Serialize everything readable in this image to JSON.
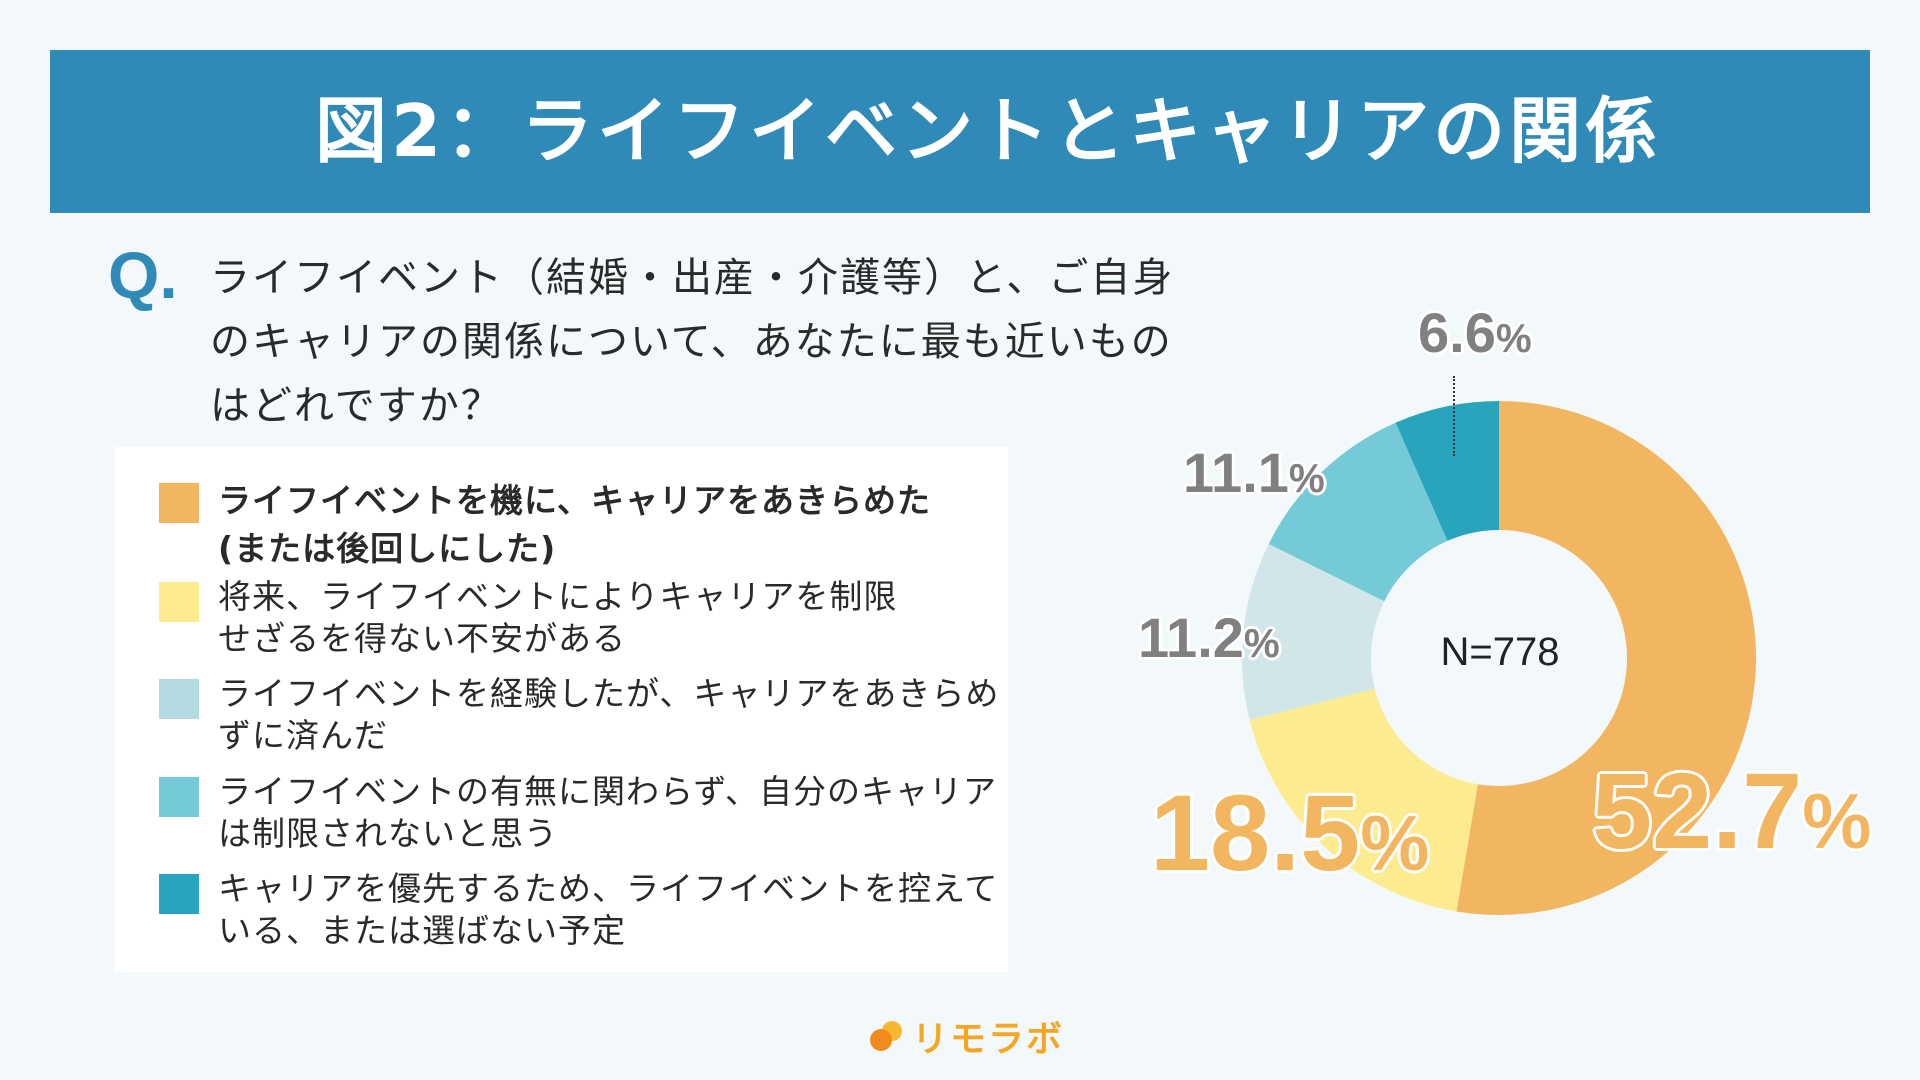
{
  "header": {
    "title": "図2：ライフイベントとキャリアの関係"
  },
  "question": {
    "mark": "Q.",
    "text": "ライフイベント（結婚・出産・介護等）と、ご自身のキャリアの関係について、あなたに最も近いものはどれですか？"
  },
  "legend": [
    {
      "label": "ライフイベントを機に、キャリアをあきらめた(または後回しにした)",
      "color": "#f2b661",
      "bold": true
    },
    {
      "label": "将来、ライフイベントによりキャリアを制限せざるを得ない不安がある",
      "color": "#fdec8f",
      "bold": false
    },
    {
      "label": "ライフイベントを経験したが、キャリアをあきらめずに済んだ",
      "color": "#b2dae0",
      "bold": false
    },
    {
      "label": "ライフイベントの有無に関わらず、自分のキャリアは制限されないと思う",
      "color": "#74cad6",
      "bold": false
    },
    {
      "label": "キャリアを優先するため、ライフイベントを控えている、または選ばない予定",
      "color": "#28a5bd",
      "bold": false
    }
  ],
  "labels": {
    "n": "N=778",
    "p1": "52.7",
    "p2": "18.5",
    "p3": "11.2",
    "p4": "11.1",
    "p5": "6.6",
    "pct_sign": "%"
  },
  "logo": {
    "text": "リモラボ"
  },
  "chart_data": {
    "type": "pie",
    "subtype": "donut",
    "title": "図2：ライフイベントとキャリアの関係",
    "question": "ライフイベント（結婚・出産・介護等）と、ご自身のキャリアの関係について、あなたに最も近いものはどれですか？",
    "center_label": "N=778",
    "categories": [
      "ライフイベントを機に、キャリアをあきらめた(または後回しにした)",
      "将来、ライフイベントによりキャリアを制限せざるを得ない不安がある",
      "ライフイベントを経験したが、キャリアをあきらめずに済んだ",
      "ライフイベントの有無に関わらず、自分のキャリアは制限されないと思う",
      "キャリアを優先するため、ライフイベントを控えている、または選ばない予定"
    ],
    "values": [
      52.7,
      18.5,
      11.2,
      11.1,
      6.6
    ],
    "unit": "%",
    "colors": [
      "#f2b661",
      "#fdec8f",
      "#d2e6ea",
      "#74cad6",
      "#28a5bd"
    ],
    "start_angle": "12 o'clock, clockwise",
    "legend_position": "left"
  }
}
